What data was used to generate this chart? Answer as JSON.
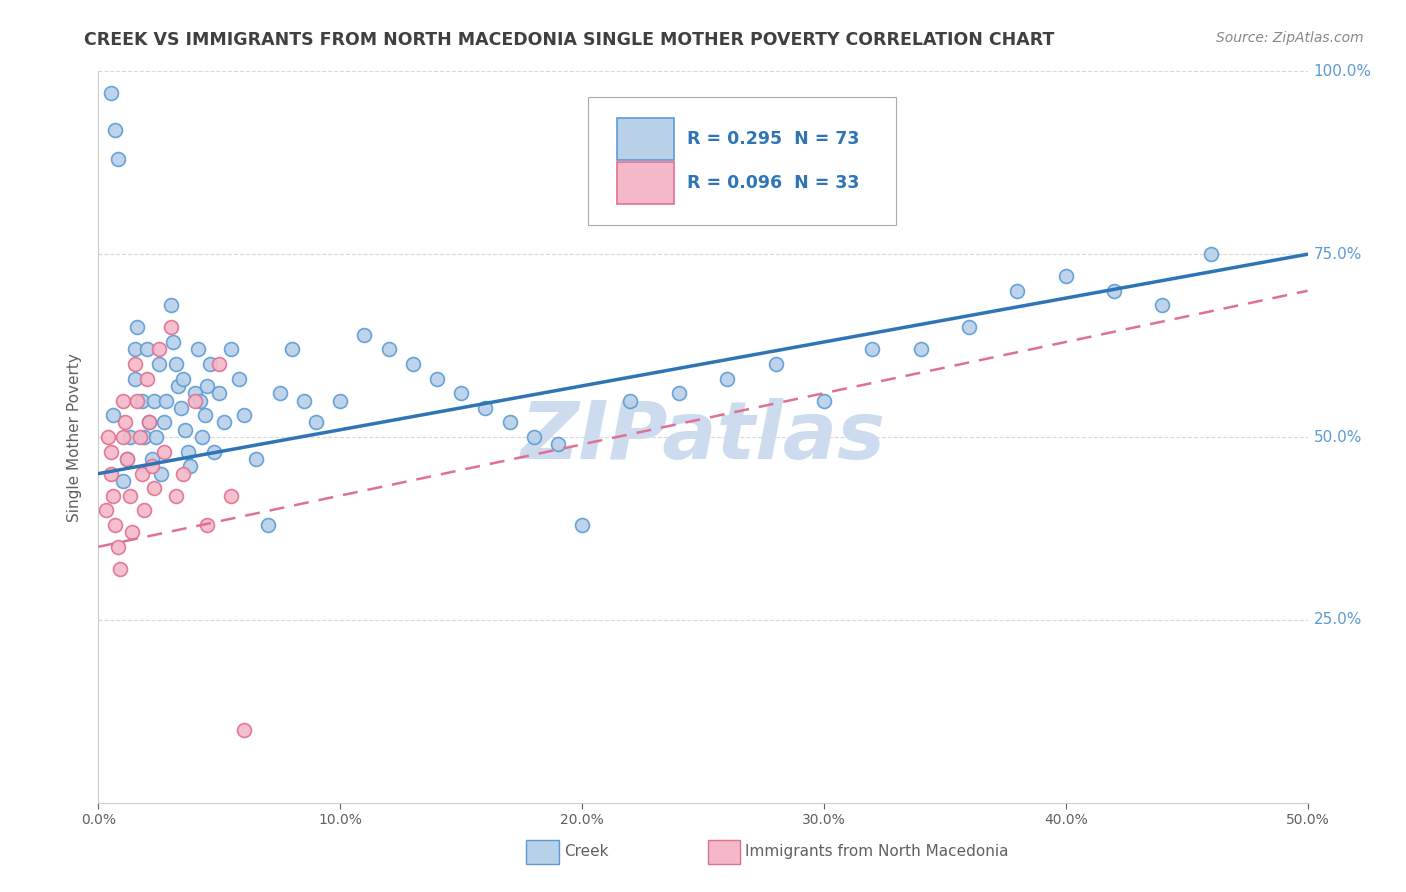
{
  "title": "CREEK VS IMMIGRANTS FROM NORTH MACEDONIA SINGLE MOTHER POVERTY CORRELATION CHART",
  "source": "Source: ZipAtlas.com",
  "ylabel": "Single Mother Poverty",
  "xlim": [
    0,
    0.5
  ],
  "ylim": [
    0,
    1.0
  ],
  "yticks": [
    0.25,
    0.5,
    0.75,
    1.0
  ],
  "ytick_labels": [
    "25.0%",
    "50.0%",
    "75.0%",
    "100.0%"
  ],
  "xticks": [
    0.0,
    0.1,
    0.2,
    0.3,
    0.4,
    0.5
  ],
  "xtick_labels": [
    "0.0%",
    "10.0%",
    "20.0%",
    "30.0%",
    "40.0%",
    "50.0%"
  ],
  "creek_R": 0.295,
  "creek_N": 73,
  "immig_R": 0.096,
  "immig_N": 33,
  "creek_color": "#b8d0e8",
  "creek_edge_color": "#5b9bd5",
  "immig_color": "#f4b8c8",
  "immig_edge_color": "#e07090",
  "creek_trend_color": "#2e75b6",
  "immig_trend_color": "#e07090",
  "bg_color": "#ffffff",
  "grid_color": "#d8d8d8",
  "watermark_color": "#ccdcee",
  "title_color": "#404040",
  "axis_color": "#606060",
  "tick_color": "#5b9bd5",
  "legend_text_color": "#2e75b6",
  "creek_x": [
    0.005,
    0.006,
    0.007,
    0.008,
    0.01,
    0.012,
    0.013,
    0.015,
    0.015,
    0.016,
    0.018,
    0.019,
    0.02,
    0.021,
    0.022,
    0.023,
    0.024,
    0.025,
    0.026,
    0.027,
    0.028,
    0.03,
    0.031,
    0.032,
    0.033,
    0.034,
    0.035,
    0.036,
    0.037,
    0.038,
    0.04,
    0.041,
    0.042,
    0.043,
    0.044,
    0.045,
    0.046,
    0.048,
    0.05,
    0.052,
    0.055,
    0.058,
    0.06,
    0.065,
    0.07,
    0.075,
    0.08,
    0.085,
    0.09,
    0.1,
    0.11,
    0.12,
    0.13,
    0.14,
    0.15,
    0.16,
    0.17,
    0.18,
    0.19,
    0.2,
    0.22,
    0.24,
    0.26,
    0.28,
    0.3,
    0.32,
    0.34,
    0.36,
    0.38,
    0.4,
    0.42,
    0.44,
    0.46
  ],
  "creek_y": [
    0.97,
    0.53,
    0.92,
    0.88,
    0.44,
    0.47,
    0.5,
    0.58,
    0.62,
    0.65,
    0.55,
    0.5,
    0.62,
    0.52,
    0.47,
    0.55,
    0.5,
    0.6,
    0.45,
    0.52,
    0.55,
    0.68,
    0.63,
    0.6,
    0.57,
    0.54,
    0.58,
    0.51,
    0.48,
    0.46,
    0.56,
    0.62,
    0.55,
    0.5,
    0.53,
    0.57,
    0.6,
    0.48,
    0.56,
    0.52,
    0.62,
    0.58,
    0.53,
    0.47,
    0.38,
    0.56,
    0.62,
    0.55,
    0.52,
    0.55,
    0.64,
    0.62,
    0.6,
    0.58,
    0.56,
    0.54,
    0.52,
    0.5,
    0.49,
    0.38,
    0.55,
    0.56,
    0.58,
    0.6,
    0.55,
    0.62,
    0.62,
    0.65,
    0.7,
    0.72,
    0.7,
    0.68,
    0.75
  ],
  "immig_x": [
    0.003,
    0.004,
    0.005,
    0.005,
    0.006,
    0.007,
    0.008,
    0.009,
    0.01,
    0.01,
    0.011,
    0.012,
    0.013,
    0.014,
    0.015,
    0.016,
    0.017,
    0.018,
    0.019,
    0.02,
    0.021,
    0.022,
    0.023,
    0.025,
    0.027,
    0.03,
    0.032,
    0.035,
    0.04,
    0.045,
    0.05,
    0.055,
    0.06
  ],
  "immig_y": [
    0.4,
    0.5,
    0.45,
    0.48,
    0.42,
    0.38,
    0.35,
    0.32,
    0.5,
    0.55,
    0.52,
    0.47,
    0.42,
    0.37,
    0.6,
    0.55,
    0.5,
    0.45,
    0.4,
    0.58,
    0.52,
    0.46,
    0.43,
    0.62,
    0.48,
    0.65,
    0.42,
    0.45,
    0.55,
    0.38,
    0.6,
    0.42,
    0.1
  ],
  "marker_size": 100,
  "marker_linewidth": 1.2
}
